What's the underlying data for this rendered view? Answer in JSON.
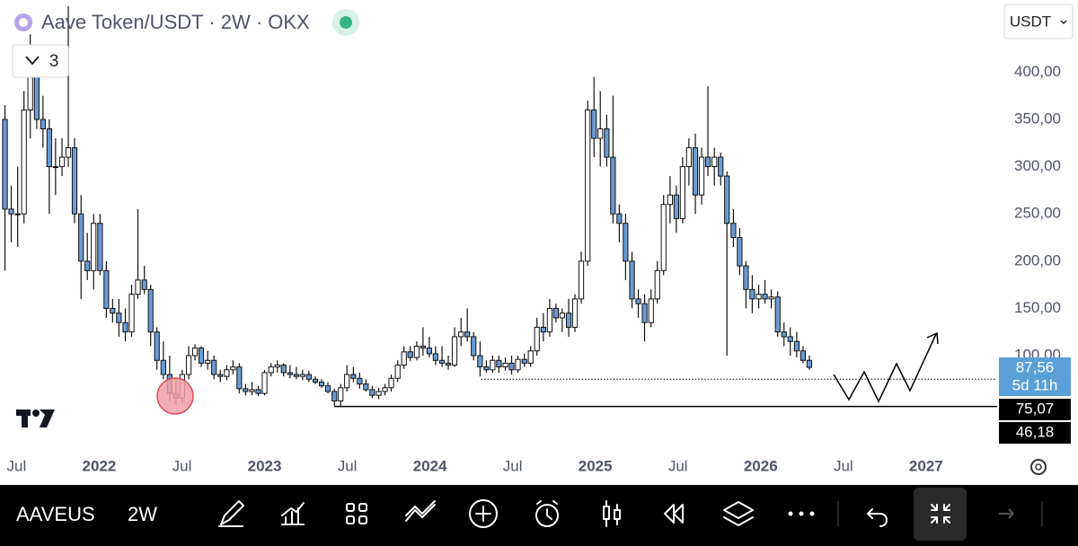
{
  "chart_data": {
    "type": "candlestick",
    "title": "Aave Token/USDT · 2W · OKX",
    "x": [
      2021.43,
      2021.468,
      2021.507,
      2021.545,
      2021.583,
      2021.622,
      2021.66,
      2021.698,
      2021.736,
      2021.775,
      2021.813,
      2021.851,
      2021.89,
      2021.928,
      2021.966,
      2022.005,
      2022.043,
      2022.081,
      2022.119,
      2022.158,
      2022.196,
      2022.234,
      2022.273,
      2022.311,
      2022.349,
      2022.388,
      2022.426,
      2022.464,
      2022.502,
      2022.541,
      2022.579,
      2022.617,
      2022.656,
      2022.694,
      2022.732,
      2022.771,
      2022.809,
      2022.847,
      2022.885,
      2022.924,
      2022.962,
      2023.0,
      2023.039,
      2023.077,
      2023.115,
      2023.154,
      2023.192,
      2023.23,
      2023.268,
      2023.307,
      2023.345,
      2023.383,
      2023.422,
      2023.46,
      2023.498,
      2023.537,
      2023.575,
      2023.613,
      2023.651,
      2023.69,
      2023.728,
      2023.766,
      2023.805,
      2023.843,
      2023.881,
      2023.92,
      2023.958,
      2023.996,
      2024.034,
      2024.073,
      2024.111,
      2024.149,
      2024.188,
      2024.226,
      2024.264,
      2024.303,
      2024.341,
      2024.379,
      2024.417,
      2024.456,
      2024.494,
      2024.532,
      2024.571,
      2024.609,
      2024.647,
      2024.686,
      2024.724,
      2024.762,
      2024.8,
      2024.839,
      2024.877,
      2024.915,
      2024.954,
      2024.992,
      2025.03,
      2025.069,
      2025.107,
      2025.145,
      2025.183,
      2025.222,
      2025.26,
      2025.298,
      2025.337,
      2025.375,
      2025.413,
      2025.452,
      2025.49,
      2025.528,
      2025.566,
      2025.605,
      2025.643,
      2025.681,
      2025.72,
      2025.758,
      2025.796,
      2025.835,
      2025.873,
      2025.911,
      2025.949,
      2025.988,
      2026.026,
      2026.064,
      2026.103,
      2026.141,
      2026.179,
      2026.218,
      2026.256,
      2026.294
    ],
    "open": [
      350,
      255,
      250,
      250,
      360,
      400,
      350,
      340,
      300,
      300,
      310,
      320,
      250,
      200,
      190,
      240,
      190,
      150,
      145,
      135,
      125,
      165,
      180,
      170,
      125,
      95,
      80,
      60,
      55,
      80,
      100,
      108,
      92,
      95,
      80,
      78,
      85,
      88,
      65,
      62,
      64,
      60,
      82,
      88,
      90,
      82,
      80,
      78,
      80,
      75,
      72,
      68,
      62,
      52,
      66,
      80,
      76,
      70,
      64,
      58,
      62,
      66,
      76,
      90,
      104,
      98,
      110,
      108,
      102,
      95,
      92,
      90,
      120,
      125,
      120,
      100,
      88,
      85,
      95,
      88,
      92,
      85,
      96,
      92,
      105,
      130,
      125,
      150,
      140,
      145,
      130,
      160,
      200,
      360,
      330,
      340,
      310,
      250,
      240,
      200,
      160,
      155,
      135,
      160,
      190,
      260,
      270,
      245,
      300,
      320,
      270,
      310,
      300,
      310,
      290,
      240,
      225,
      195,
      170,
      160,
      165,
      160,
      162,
      125,
      120,
      115,
      105,
      95
    ],
    "high": [
      365,
      280,
      300,
      380,
      440,
      420,
      375,
      350,
      330,
      330,
      470,
      330,
      270,
      230,
      250,
      250,
      200,
      160,
      160,
      150,
      175,
      255,
      195,
      175,
      130,
      115,
      100,
      75,
      85,
      110,
      112,
      110,
      105,
      100,
      85,
      90,
      95,
      92,
      70,
      72,
      68,
      85,
      92,
      95,
      92,
      90,
      88,
      85,
      84,
      78,
      75,
      72,
      65,
      70,
      90,
      88,
      82,
      75,
      68,
      66,
      70,
      80,
      95,
      110,
      110,
      115,
      130,
      120,
      110,
      110,
      100,
      130,
      140,
      150,
      125,
      115,
      95,
      100,
      100,
      98,
      100,
      100,
      102,
      110,
      140,
      145,
      160,
      155,
      150,
      160,
      165,
      210,
      370,
      395,
      380,
      355,
      375,
      260,
      250,
      210,
      170,
      165,
      170,
      200,
      270,
      290,
      280,
      310,
      330,
      335,
      320,
      385,
      320,
      315,
      295,
      255,
      235,
      200,
      185,
      175,
      180,
      170,
      168,
      135,
      130,
      125,
      110,
      100
    ],
    "low": [
      190,
      220,
      215,
      240,
      330,
      340,
      320,
      250,
      270,
      290,
      300,
      240,
      160,
      180,
      170,
      185,
      140,
      135,
      120,
      115,
      120,
      160,
      165,
      110,
      85,
      75,
      52,
      48,
      50,
      75,
      95,
      88,
      85,
      75,
      72,
      74,
      80,
      60,
      58,
      58,
      57,
      58,
      78,
      82,
      78,
      76,
      75,
      74,
      72,
      70,
      66,
      60,
      47,
      46,
      62,
      72,
      65,
      62,
      55,
      54,
      58,
      62,
      72,
      86,
      94,
      95,
      100,
      98,
      90,
      88,
      85,
      88,
      110,
      115,
      95,
      78,
      82,
      82,
      82,
      84,
      80,
      82,
      88,
      88,
      100,
      115,
      120,
      135,
      125,
      120,
      125,
      155,
      195,
      310,
      300,
      300,
      240,
      220,
      180,
      150,
      140,
      115,
      130,
      155,
      185,
      240,
      230,
      240,
      280,
      250,
      260,
      290,
      280,
      280,
      100,
      215,
      185,
      150,
      145,
      150,
      155,
      150,
      120,
      110,
      100,
      98,
      92,
      85
    ],
    "close": [
      255,
      250,
      250,
      360,
      400,
      350,
      340,
      300,
      300,
      310,
      320,
      250,
      200,
      190,
      240,
      190,
      150,
      145,
      135,
      125,
      165,
      180,
      170,
      125,
      95,
      80,
      60,
      55,
      80,
      100,
      108,
      92,
      95,
      80,
      78,
      85,
      88,
      65,
      62,
      64,
      60,
      82,
      88,
      90,
      82,
      80,
      78,
      80,
      75,
      72,
      68,
      62,
      52,
      66,
      80,
      76,
      70,
      64,
      58,
      62,
      66,
      76,
      90,
      104,
      98,
      110,
      108,
      102,
      95,
      92,
      90,
      120,
      125,
      120,
      100,
      88,
      85,
      95,
      88,
      92,
      85,
      96,
      92,
      105,
      130,
      125,
      150,
      140,
      145,
      130,
      160,
      200,
      360,
      330,
      340,
      310,
      250,
      240,
      200,
      160,
      155,
      135,
      160,
      190,
      260,
      270,
      245,
      300,
      320,
      270,
      310,
      300,
      310,
      290,
      240,
      225,
      195,
      170,
      160,
      165,
      160,
      162,
      125,
      120,
      115,
      105,
      95,
      87.56
    ],
    "up_color": "#ffffff",
    "down_color": "#6a9bd3",
    "xlim": [
      2021.4,
      2027.43
    ],
    "xticks": [
      {
        "value": 2021.5,
        "label": "Jul"
      },
      2022,
      {
        "value": 2022.5,
        "label": "Jul"
      },
      2023,
      {
        "value": 2023.5,
        "label": "Jul"
      },
      2024,
      {
        "value": 2024.5,
        "label": "Jul"
      },
      2025,
      {
        "value": 2025.5,
        "label": "Jul"
      },
      2026,
      {
        "value": 2026.5,
        "label": "Jul"
      },
      2027
    ],
    "ylim": [
      -3.6,
      476.4
    ],
    "yticks": [
      {
        "value": 100,
        "label": "100,00"
      },
      {
        "value": 150,
        "label": "150,00"
      },
      {
        "value": 200,
        "label": "200,00"
      },
      {
        "value": 250,
        "label": "250,00"
      },
      {
        "value": 300,
        "label": "300,00"
      },
      {
        "value": 350,
        "label": "350,00"
      },
      {
        "value": 400,
        "label": "400,00"
      }
    ],
    "grid": false,
    "last_price": {
      "value": 87.56,
      "label": "87,56",
      "countdown": "5d 11h"
    },
    "price_lines": [
      {
        "value": 75.07,
        "label": "75,07",
        "x0": 2024.31,
        "style": "dotted"
      },
      {
        "value": 46.18,
        "label": "46,18",
        "x0": 2023.42,
        "style": "solid"
      }
    ]
  },
  "ui": {
    "currency": "USDT",
    "indicators": "3",
    "symbol": "AAVEUS",
    "interval": "2W"
  }
}
